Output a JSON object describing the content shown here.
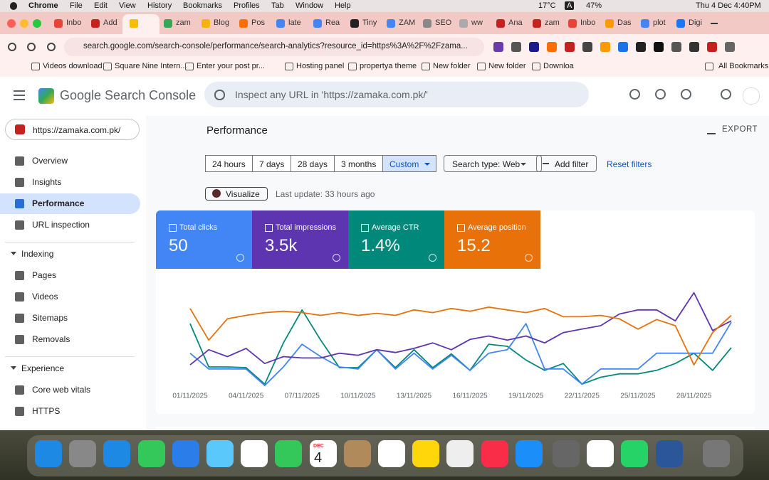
{
  "menu_bar": {
    "items": [
      "Chrome",
      "File",
      "Edit",
      "View",
      "History",
      "Bookmarks",
      "Profiles",
      "Tab",
      "Window",
      "Help"
    ],
    "status": [
      "17°C",
      "A",
      "47%",
      "Thu 4 Dec  4:40PM"
    ]
  },
  "tabs": [
    "Inbo",
    "Add",
    "zam",
    "Blog",
    "Pos",
    "late",
    "Rea",
    "Tiny",
    "ZAM",
    "SEO",
    "ww",
    "Ana",
    "zam",
    "Inbo",
    "Das",
    "plot",
    "Digi"
  ],
  "address": "search.google.com/search-console/performance/search-analytics?resource_id=https%3A%2F%2Fzama...",
  "bookmarks": [
    "Videos download",
    "Square Nine Intern...",
    "Enter your post pr...",
    "Hosting panel",
    "propertya theme",
    "New folder",
    "New folder",
    "Downloa"
  ],
  "all_bookmarks": "All Bookmarks",
  "app": {
    "name": "Google Search Console",
    "search_placeholder": "Inspect any URL in 'https://zamaka.com.pk/'",
    "property": "https://zamaka.com.pk/"
  },
  "sidebar": {
    "items": [
      "Overview",
      "Insights",
      "Performance",
      "URL inspection"
    ],
    "sections": [
      {
        "title": "Indexing",
        "items": [
          "Pages",
          "Videos",
          "Sitemaps",
          "Removals"
        ]
      },
      {
        "title": "Experience",
        "items": [
          "Core web vitals",
          "HTTPS"
        ]
      }
    ]
  },
  "page": {
    "title": "Performance",
    "export": "EXPORT",
    "date_filters": [
      "24 hours",
      "7 days",
      "28 days",
      "3 months",
      "Custom"
    ],
    "search_type": "Search type: Web",
    "add_filter": "Add filter",
    "reset": "Reset filters",
    "visualize": "Visualize",
    "last_update": "Last update: 33 hours ago"
  },
  "metric_values": [
    "50",
    "3.5k",
    "1.4%",
    "15.2"
  ],
  "dock": {
    "calendar_month": "DEC",
    "calendar_day": "4"
  },
  "chart_data": {
    "type": "line",
    "categories": [
      "01/11/2025",
      null,
      null,
      "04/11/2025",
      null,
      null,
      "07/11/2025",
      null,
      null,
      "10/11/2025",
      null,
      null,
      "13/11/2025",
      null,
      null,
      "16/11/2025",
      null,
      null,
      "19/11/2025",
      null,
      null,
      "22/11/2025",
      null,
      null,
      "25/11/2025",
      null,
      null,
      "28/11/2025",
      null,
      null
    ],
    "ylim": [
      0,
      150
    ],
    "series": [
      {
        "name": "Total clicks",
        "color": "#4285f4",
        "values": [
          50,
          27,
          27,
          27,
          3,
          30,
          63,
          45,
          30,
          27,
          55,
          27,
          50,
          27,
          47,
          25,
          50,
          55,
          93,
          27,
          27,
          5,
          27,
          27,
          27,
          50,
          50,
          50,
          50,
          95
        ]
      },
      {
        "name": "Total impressions",
        "color": "#5e35b1",
        "values": [
          33,
          55,
          45,
          57,
          35,
          45,
          43,
          43,
          50,
          47,
          55,
          51,
          57,
          65,
          55,
          70,
          75,
          69,
          75,
          65,
          80,
          85,
          90,
          107,
          113,
          113,
          97,
          138,
          83,
          97
        ]
      },
      {
        "name": "Average CTR",
        "color": "#00897b",
        "values": [
          93,
          30,
          30,
          29,
          5,
          65,
          113,
          69,
          29,
          29,
          55,
          29,
          55,
          29,
          49,
          25,
          63,
          60,
          40,
          25,
          35,
          5,
          15,
          20,
          20,
          25,
          35,
          50,
          25,
          58
        ]
      },
      {
        "name": "Average position",
        "color": "#e8710a",
        "values": [
          115,
          69,
          100,
          105,
          109,
          111,
          109,
          105,
          109,
          105,
          108,
          105,
          113,
          109,
          115,
          111,
          117,
          113,
          109,
          115,
          103,
          103,
          105,
          100,
          85,
          99,
          90,
          33,
          80,
          105
        ]
      }
    ]
  }
}
